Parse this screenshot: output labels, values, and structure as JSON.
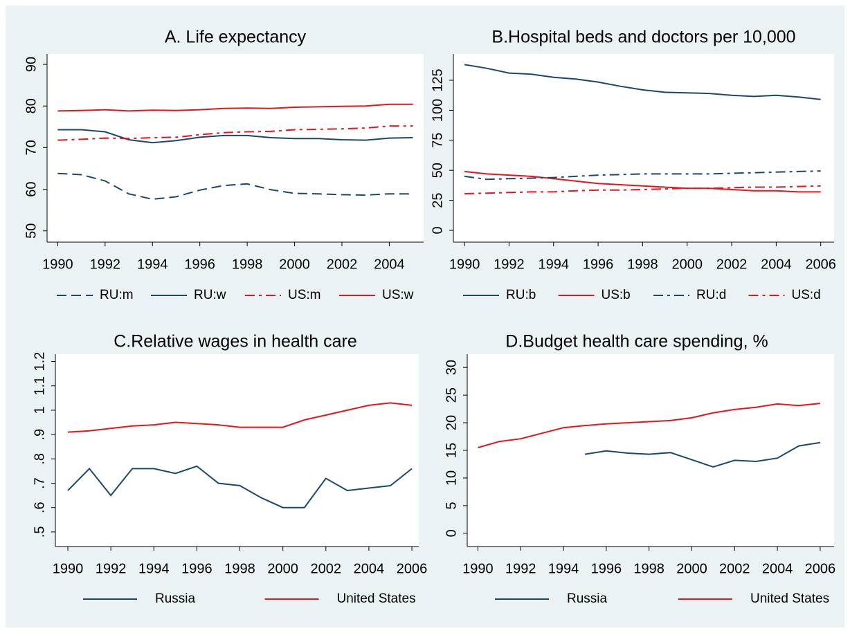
{
  "chart_data": [
    {
      "type": "line",
      "title": "A. Life expectancy",
      "x": [
        1990,
        1991,
        1992,
        1993,
        1994,
        1995,
        1996,
        1997,
        1998,
        1999,
        2000,
        2001,
        2002,
        2003,
        2004,
        2005
      ],
      "xlim": [
        1989.55,
        2005.45
      ],
      "xticks": [
        1990,
        1992,
        1994,
        1996,
        1998,
        2000,
        2002,
        2004
      ],
      "ylim": [
        47.3,
        92.5
      ],
      "yticks": [
        50,
        60,
        70,
        80,
        90
      ],
      "grid": false,
      "legend": "bottom",
      "series": [
        {
          "name": "RU:m",
          "color": "#1a476f",
          "style": "longdash",
          "values": [
            63.8,
            63.5,
            62.0,
            58.9,
            57.6,
            58.2,
            59.8,
            60.9,
            61.3,
            59.9,
            59.0,
            58.9,
            58.7,
            58.6,
            58.9,
            58.9
          ]
        },
        {
          "name": "RU:w",
          "color": "#1a476f",
          "style": "solid",
          "values": [
            74.3,
            74.3,
            73.8,
            71.9,
            71.2,
            71.7,
            72.5,
            72.9,
            72.9,
            72.4,
            72.2,
            72.2,
            71.9,
            71.8,
            72.3,
            72.4
          ]
        },
        {
          "name": "US:m",
          "color": "#e8131b",
          "style": "dashdot",
          "values": [
            71.8,
            72.0,
            72.3,
            72.2,
            72.4,
            72.5,
            73.1,
            73.6,
            73.8,
            73.9,
            74.3,
            74.4,
            74.5,
            74.7,
            75.2,
            75.2
          ]
        },
        {
          "name": "US:w",
          "color": "#e8131b",
          "style": "solid",
          "values": [
            78.8,
            78.9,
            79.1,
            78.8,
            79.0,
            78.9,
            79.1,
            79.4,
            79.5,
            79.4,
            79.7,
            79.8,
            79.9,
            80.0,
            80.4,
            80.4
          ]
        }
      ]
    },
    {
      "type": "line",
      "title": "B.Hospital beds and doctors per 10,000",
      "x": [
        1990,
        1991,
        1992,
        1993,
        1994,
        1995,
        1996,
        1997,
        1998,
        1999,
        2000,
        2001,
        2002,
        2003,
        2004,
        2005,
        2006
      ],
      "xlim": [
        1989.5,
        2006.6
      ],
      "xticks": [
        1990,
        1992,
        1994,
        1996,
        1998,
        2000,
        2002,
        2004,
        2006
      ],
      "ylim": [
        -9.8,
        146.9
      ],
      "yticks": [
        0,
        25,
        50,
        75,
        100,
        125
      ],
      "grid": false,
      "legend": "bottom",
      "series": [
        {
          "name": "RU:b",
          "color": "#1a476f",
          "style": "solid",
          "values": [
            138,
            135,
            131,
            130,
            127.5,
            126,
            123.5,
            120,
            117,
            115,
            114.5,
            114,
            112.5,
            111.5,
            112.5,
            111,
            109
          ]
        },
        {
          "name": "US:b",
          "color": "#e8131b",
          "style": "solid",
          "values": [
            49,
            47,
            46,
            45,
            43,
            41,
            39,
            38,
            37,
            36,
            35,
            35,
            34,
            33,
            33,
            32,
            32
          ]
        },
        {
          "name": "RU:d",
          "color": "#1a476f",
          "style": "dashdot",
          "values": [
            45,
            42.5,
            43,
            43.5,
            44,
            45,
            46,
            46.5,
            47,
            47,
            47,
            47,
            47.5,
            48,
            48.5,
            49,
            49.5
          ]
        },
        {
          "name": "US:d",
          "color": "#e8131b",
          "style": "dashdot",
          "values": [
            30.5,
            31,
            31.5,
            32,
            32,
            33,
            33.5,
            33.5,
            34,
            34.5,
            35,
            35,
            35.5,
            36,
            36,
            36.5,
            37
          ]
        }
      ]
    },
    {
      "type": "line",
      "title": "C.Relative wages in health care",
      "x": [
        1990,
        1991,
        1992,
        1993,
        1994,
        1995,
        1996,
        1997,
        1998,
        1999,
        2000,
        2001,
        2002,
        2003,
        2004,
        2005,
        2006
      ],
      "xlim": [
        1989.42,
        2006.32
      ],
      "xticks": [
        1990,
        1992,
        1994,
        1996,
        1998,
        2000,
        2002,
        2004,
        2006
      ],
      "ylim": [
        0.44,
        1.23
      ],
      "yticks": [
        {
          "value": 0.5,
          "label": ".5"
        },
        {
          "value": 0.6,
          "label": ".6"
        },
        {
          "value": 0.7,
          "label": ".7"
        },
        {
          "value": 0.8,
          "label": ".8"
        },
        {
          "value": 0.9,
          "label": ".9"
        },
        1,
        1.1,
        1.2
      ],
      "grid": false,
      "legend": "bottom",
      "series": [
        {
          "name": "Russia",
          "color": "#1a476f",
          "style": "solid",
          "values": [
            0.67,
            0.76,
            0.65,
            0.76,
            0.76,
            0.74,
            0.77,
            0.7,
            0.69,
            0.64,
            0.6,
            0.6,
            0.72,
            0.67,
            0.68,
            0.69,
            0.76
          ]
        },
        {
          "name": "United States",
          "color": "#e8131b",
          "style": "solid",
          "values": [
            0.91,
            0.915,
            0.925,
            0.935,
            0.94,
            0.95,
            0.945,
            0.94,
            0.93,
            0.93,
            0.93,
            0.96,
            0.98,
            1.0,
            1.02,
            1.03,
            1.02
          ]
        }
      ]
    },
    {
      "type": "line",
      "title": "D.Budget health care spending, %",
      "x": [
        1990,
        1991,
        1992,
        1993,
        1994,
        1995,
        1996,
        1997,
        1998,
        1999,
        2000,
        2001,
        2002,
        2003,
        2004,
        2005,
        2006
      ],
      "xlim": [
        1989.5,
        2006.65
      ],
      "xticks": [
        1990,
        1992,
        1994,
        1996,
        1998,
        2000,
        2002,
        2004,
        2006
      ],
      "ylim": [
        -2.4,
        32.4
      ],
      "yticks": [
        0,
        5,
        10,
        15,
        20,
        25,
        30
      ],
      "grid": false,
      "legend": "bottom",
      "series": [
        {
          "name": "Russia",
          "color": "#1a476f",
          "style": "solid",
          "values": [
            null,
            null,
            null,
            null,
            null,
            14.3,
            14.9,
            14.5,
            14.3,
            14.6,
            13.3,
            12.0,
            13.2,
            13.0,
            13.6,
            15.8,
            16.4
          ]
        },
        {
          "name": "United States",
          "color": "#e8131b",
          "style": "solid",
          "values": [
            15.5,
            16.6,
            17.1,
            18.1,
            19.1,
            19.5,
            19.8,
            20.0,
            20.2,
            20.4,
            20.9,
            21.8,
            22.4,
            22.8,
            23.4,
            23.1,
            23.5
          ]
        }
      ]
    }
  ]
}
